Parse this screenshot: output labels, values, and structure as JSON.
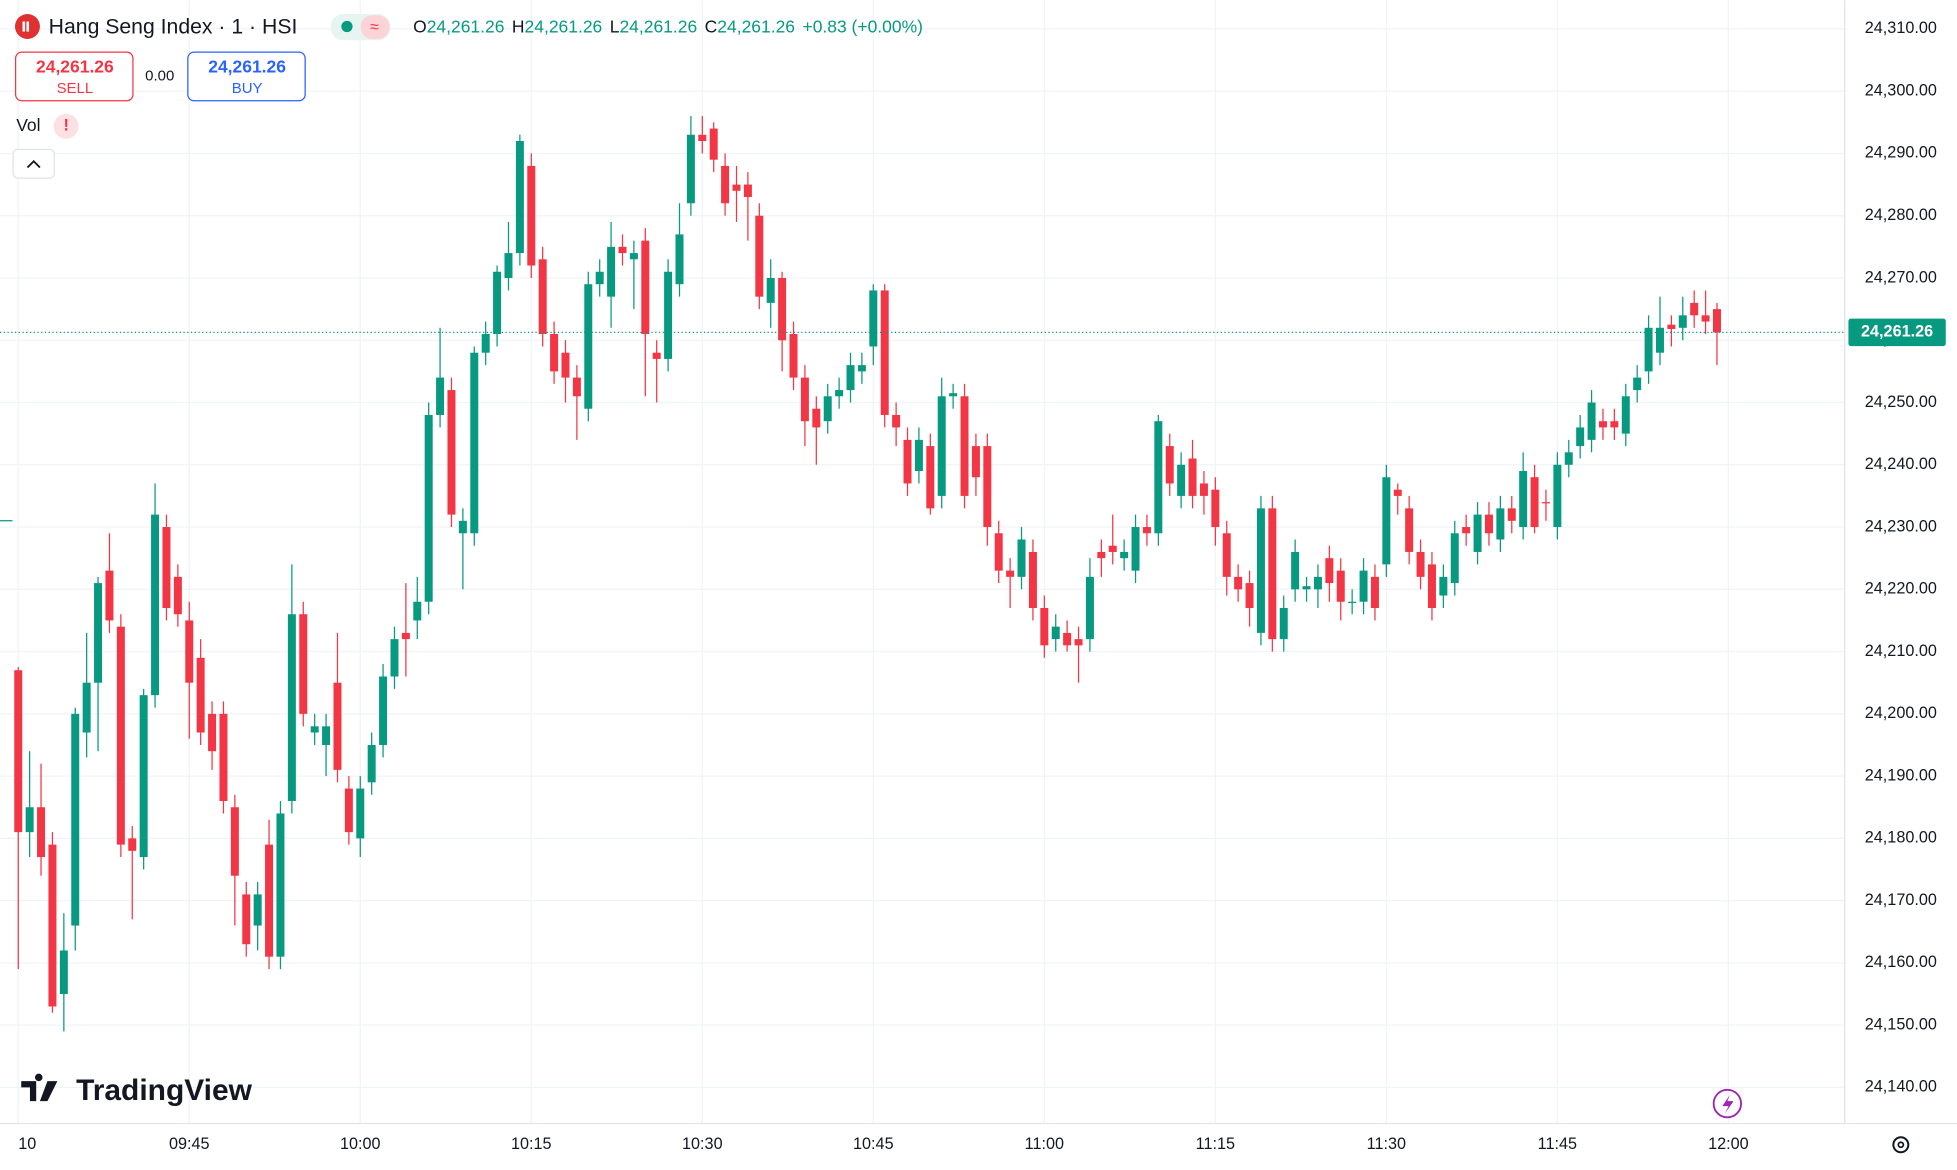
{
  "chart_data": {
    "type": "candlestick",
    "header": {
      "title": "Hang Seng Index · 1 · HSI",
      "o": "O",
      "open": "24,261.26",
      "h": "H",
      "high": "24,261.26",
      "l": "L",
      "low": "24,261.26",
      "c": "C",
      "close": "24,261.26",
      "change": "+0.83 (+0.00%)"
    },
    "sell": {
      "price": "24,261.26",
      "label": "SELL"
    },
    "spread": "0.00",
    "buy": {
      "price": "24,261.26",
      "label": "BUY"
    },
    "volume_label": "Vol",
    "logo": "TradingView",
    "up_color": "#089981",
    "down_color": "#f23645",
    "grid": true,
    "last_price": {
      "value": 24261.26,
      "label": "24,261.26"
    },
    "xlim": [
      568.4,
      730.2
    ],
    "xticks": [
      {
        "value": 570,
        "label": "10"
      },
      {
        "value": 585,
        "label": "09:45"
      },
      {
        "value": 600,
        "label": "10:00"
      },
      {
        "value": 615,
        "label": "10:15"
      },
      {
        "value": 630,
        "label": "10:30"
      },
      {
        "value": 645,
        "label": "10:45"
      },
      {
        "value": 660,
        "label": "11:00"
      },
      {
        "value": 675,
        "label": "11:15"
      },
      {
        "value": 690,
        "label": "11:30"
      },
      {
        "value": 705,
        "label": "11:45"
      },
      {
        "value": 720,
        "label": "12:00"
      }
    ],
    "ylim": [
      24134.2,
      24314.6
    ],
    "yticks": [
      {
        "value": 24140,
        "label": "24,140.00"
      },
      {
        "value": 24150,
        "label": "24,150.00"
      },
      {
        "value": 24160,
        "label": "24,160.00"
      },
      {
        "value": 24170,
        "label": "24,170.00"
      },
      {
        "value": 24180,
        "label": "24,180.00"
      },
      {
        "value": 24190,
        "label": "24,190.00"
      },
      {
        "value": 24200,
        "label": "24,200.00"
      },
      {
        "value": 24210,
        "label": "24,210.00"
      },
      {
        "value": 24220,
        "label": "24,220.00"
      },
      {
        "value": 24230,
        "label": "24,230.00"
      },
      {
        "value": 24240,
        "label": "24,240.00"
      },
      {
        "value": 24250,
        "label": "24,250.00"
      },
      {
        "value": 24260,
        "label": "24,260.00"
      },
      {
        "value": 24270,
        "label": "24,270.00"
      },
      {
        "value": 24280,
        "label": "24,280.00"
      },
      {
        "value": 24290,
        "label": "24,290.00"
      },
      {
        "value": 24300,
        "label": "24,300.00"
      },
      {
        "value": 24310,
        "label": "24,310.00"
      }
    ],
    "x": [
      570,
      571,
      572,
      573,
      574,
      575,
      576,
      577,
      578,
      579,
      580,
      581,
      582,
      583,
      584,
      585,
      586,
      587,
      588,
      589,
      590,
      591,
      592,
      593,
      594,
      595,
      596,
      597,
      598,
      599,
      600,
      601,
      602,
      603,
      604,
      605,
      606,
      607,
      608,
      609,
      610,
      611,
      612,
      613,
      614,
      615,
      616,
      617,
      618,
      619,
      620,
      621,
      622,
      623,
      624,
      625,
      626,
      627,
      628,
      629,
      630,
      631,
      632,
      633,
      634,
      635,
      636,
      637,
      638,
      639,
      640,
      641,
      642,
      643,
      644,
      645,
      646,
      647,
      648,
      649,
      650,
      651,
      652,
      653,
      654,
      655,
      656,
      657,
      658,
      659,
      660,
      661,
      662,
      663,
      664,
      665,
      666,
      667,
      668,
      669,
      670,
      671,
      672,
      673,
      674,
      675,
      676,
      677,
      678,
      679,
      680,
      681,
      682,
      683,
      684,
      685,
      686,
      687,
      688,
      689,
      690,
      691,
      692,
      693,
      694,
      695,
      696,
      697,
      698,
      699,
      700,
      701,
      702,
      703,
      704,
      705,
      706,
      707,
      708,
      709,
      710,
      711,
      712,
      713,
      714,
      715,
      716,
      717,
      718,
      719
    ],
    "open": [
      24207,
      24181,
      24185,
      24179,
      24155,
      24166,
      24197,
      24205,
      24223,
      24214,
      24180,
      24177,
      24203,
      24230,
      24222,
      24215,
      24209,
      24200,
      24200,
      24185,
      24171,
      24166,
      24179,
      24161,
      24186,
      24216,
      24197,
      24195,
      24205,
      24188,
      24180,
      24189,
      24195,
      24206,
      24213,
      24215,
      24218,
      24248,
      24252,
      24229,
      24229,
      24258,
      24261,
      24270,
      24274,
      24288,
      24273,
      24261,
      24258,
      24254,
      24249,
      24269,
      24267,
      24275,
      24273,
      24276,
      24258,
      24257,
      24269,
      24282,
      24293,
      24294,
      24288,
      24285,
      24285,
      24280,
      24266,
      24270,
      24261,
      24254,
      24249,
      24247,
      24251,
      24252,
      24255,
      24259,
      24268,
      24248,
      24244,
      24239,
      24243,
      24235,
      24251,
      24251,
      24243,
      24243,
      24229,
      24223,
      24222,
      24226,
      24217,
      24212,
      24213,
      24212,
      24212,
      24226,
      24227,
      24225,
      24223,
      24230,
      24229,
      24243,
      24235,
      24241,
      24237,
      24236,
      24229,
      24222,
      24221,
      24213,
      24233,
      24212,
      24220,
      24220,
      24220,
      24225,
      24223,
      24218,
      24218,
      24222,
      24224,
      24236,
      24233,
      24226,
      24224,
      24219,
      24221,
      24230,
      24226,
      24232,
      24228,
      24233,
      24230,
      24238,
      24234,
      24230,
      24240,
      24243,
      24244,
      24247,
      24247,
      24245,
      24252,
      24255,
      24258,
      24262.5,
      24262,
      24266,
      24264,
      24265
    ],
    "high": [
      24207.5,
      24194,
      24192,
      24181,
      24168,
      24201,
      24213,
      24222,
      24229,
      24216,
      24182,
      24204,
      24237,
      24232,
      24224,
      24218,
      24212,
      24202,
      24202,
      24187,
      24173,
      24173,
      24183,
      24186,
      24224,
      24218,
      24200,
      24200,
      24213,
      24190,
      24190,
      24197,
      24208,
      24214,
      24221,
      24222,
      24250,
      24262,
      24254,
      24233,
      24259,
      24263,
      24272,
      24279,
      24293,
      24290,
      24275,
      24263,
      24260,
      24256,
      24271,
      24273,
      24279,
      24277,
      24276,
      24278,
      24260,
      24273,
      24282,
      24296,
      24296,
      24295,
      24290,
      24288,
      24287,
      24282,
      24273,
      24271,
      24263,
      24256,
      24251,
      24253,
      24254,
      24258,
      24258,
      24269,
      24269,
      24250,
      24246,
      24246,
      24245,
      24254,
      24253,
      24253,
      24245,
      24245,
      24231,
      24225,
      24230,
      24228,
      24219,
      24216,
      24215,
      24214,
      24225,
      24228,
      24232,
      24228,
      24232,
      24232,
      24248,
      24245,
      24242,
      24244,
      24239,
      24238,
      24231,
      24224,
      24223,
      24235,
      24235,
      24219,
      24228,
      24222,
      24224,
      24227,
      24225,
      24220,
      24225,
      24224,
      24240,
      24237,
      24235,
      24228,
      24226,
      24224,
      24231,
      24232,
      24234,
      24234,
      24235,
      24235,
      24242,
      24240,
      24236,
      24242,
      24244,
      24248,
      24252,
      24249,
      24249,
      24253,
      24256,
      24264,
      24267,
      24264,
      24267,
      24268,
      24268,
      24266
    ],
    "low": [
      24159,
      24177,
      24174,
      24152,
      24149,
      24162,
      24193,
      24194,
      24213,
      24177,
      24167,
      24175,
      24201,
      24215,
      24214,
      24196,
      24195,
      24191,
      24184,
      24166,
      24161,
      24162,
      24159,
      24159,
      24184,
      24198,
      24195,
      24190,
      24189,
      24179,
      24177,
      24187,
      24193,
      24204,
      24206,
      24212,
      24216,
      24246,
      24230,
      24220,
      24227,
      24256,
      24259,
      24268,
      24272,
      24270,
      24259,
      24253,
      24250,
      24244,
      24247,
      24267,
      24262,
      24272,
      24265,
      24251,
      24250,
      24255,
      24267,
      24280,
      24290,
      24287,
      24280,
      24279,
      24276,
      24265,
      24262,
      24255,
      24252,
      24243,
      24240,
      24245,
      24249,
      24250,
      24253,
      24256,
      24246,
      24243,
      24235,
      24237,
      24232,
      24233,
      24249,
      24233,
      24235,
      24227,
      24221,
      24217,
      24220,
      24215,
      24209,
      24210,
      24210,
      24205,
      24210,
      24222,
      24224,
      24223,
      24221,
      24227,
      24227,
      24235,
      24233,
      24233,
      24232,
      24227,
      24219,
      24218,
      24214,
      24211,
      24210,
      24210,
      24218,
      24218,
      24217,
      24218,
      24215,
      24216,
      24216,
      24215,
      24222,
      24232,
      24224,
      24220,
      24215,
      24217,
      24219,
      24227,
      24224,
      24227,
      24226,
      24229,
      24228,
      24229,
      24231,
      24228,
      24238,
      24241,
      24242,
      24244,
      24244,
      24243,
      24250,
      24253,
      24256,
      24259,
      24260,
      24262,
      24261,
      24256
    ],
    "close": [
      24181,
      24185,
      24177,
      24153,
      24162,
      24200,
      24205,
      24221,
      24215,
      24179,
      24178,
      24203,
      24232,
      24217,
      24216,
      24205,
      24197,
      24194,
      24186,
      24174,
      24163,
      24171,
      24161,
      24184,
      24216,
      24200,
      24198,
      24198,
      24191,
      24181,
      24188,
      24195,
      24206,
      24212,
      24212,
      24218,
      24248,
      24254,
      24232,
      24231,
      24258,
      24261,
      24271,
      24274,
      24292,
      24272,
      24261,
      24255,
      24254,
      24251,
      24269,
      24271,
      24275,
      24274,
      24274,
      24261,
      24257,
      24271,
      24277,
      24293,
      24292,
      24289,
      24282,
      24284,
      24283,
      24267,
      24270,
      24260,
      24254,
      24247,
      24246,
      24251,
      24252,
      24256,
      24256,
      24268,
      24248,
      24246,
      24237,
      24244,
      24233,
      24251,
      24251.5,
      24235,
      24238,
      24230,
      24223,
      24222,
      24228,
      24217,
      24211,
      24214,
      24211,
      24211,
      24222,
      24225,
      24226,
      24226,
      24230,
      24229,
      24247,
      24237,
      24240,
      24235,
      24235,
      24230,
      24222,
      24220,
      24217,
      24233,
      24212,
      24217,
      24226,
      24220.5,
      24222,
      24221,
      24218,
      24218,
      24223,
      24217,
      24238,
      24235,
      24226,
      24222,
      24217,
      24222,
      24229,
      24229,
      24232,
      24229,
      24233,
      24231,
      24239,
      24230,
      24233.8,
      24240,
      24242,
      24246,
      24250,
      24246,
      24246,
      24251,
      24254,
      24262,
      24262,
      24261.8,
      24264,
      24264,
      24263,
      24261.26
    ]
  }
}
